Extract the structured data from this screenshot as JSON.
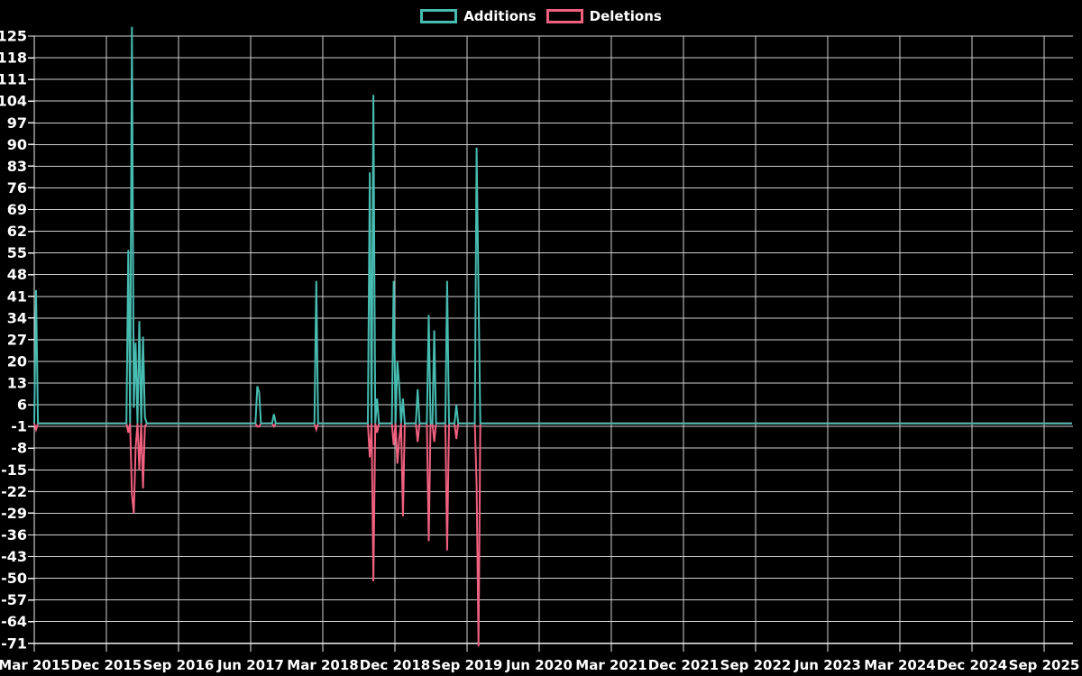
{
  "chart_data": {
    "type": "line",
    "background_color": "#000000",
    "grid_color": "#cfcfcf",
    "axis_color": "#f0f0f0",
    "text_color": "#ffffff",
    "legend": {
      "position": "top-center",
      "items": [
        {
          "label": "Additions",
          "color": "#47bcb1"
        },
        {
          "label": "Deletions",
          "color": "#f0607f"
        }
      ]
    },
    "series": [
      {
        "name": "Additions",
        "color": "#47bcb1"
      },
      {
        "name": "Deletions",
        "color": "#f0607f"
      }
    ],
    "x_axis": {
      "start_date": "2015-03-01",
      "end_date": "2025-12-14",
      "tick_interval_months": 9,
      "tick_labels": [
        "Mar 2015",
        "Dec 2015",
        "Sep 2016",
        "Jun 2017",
        "Mar 2018",
        "Dec 2018",
        "Sep 2019",
        "Jun 2020",
        "Mar 2021",
        "Dec 2021",
        "Sep 2022",
        "Jun 2023",
        "Mar 2024",
        "Dec 2024",
        "Sep 2025"
      ]
    },
    "y_axis": {
      "min": -71,
      "max": 125,
      "tick_step": 7,
      "ticks": [
        125,
        118,
        111,
        104,
        97,
        90,
        83,
        76,
        69,
        62,
        55,
        48,
        41,
        34,
        27,
        20,
        13,
        6,
        -1,
        -8,
        -15,
        -22,
        -29,
        -36,
        -43,
        -50,
        -57,
        -64,
        -71
      ]
    },
    "baseline_value": 0,
    "point_interval": "weekly",
    "weekly_points": [
      {
        "date": "2015-03-08",
        "additions": 43,
        "deletions": -2
      },
      {
        "date": "2016-02-21",
        "additions": 56,
        "deletions": -3
      },
      {
        "date": "2016-03-06",
        "additions": 128,
        "deletions": -23
      },
      {
        "date": "2016-03-13",
        "additions": 5,
        "deletions": -29
      },
      {
        "date": "2016-03-20",
        "additions": 26,
        "deletions": -8
      },
      {
        "date": "2016-04-03",
        "additions": 33,
        "deletions": -15
      },
      {
        "date": "2016-04-17",
        "additions": 28,
        "deletions": -21
      },
      {
        "date": "2016-04-24",
        "additions": 2,
        "deletions": -1
      },
      {
        "date": "2017-06-25",
        "additions": 12,
        "deletions": -1
      },
      {
        "date": "2017-07-02",
        "additions": 10,
        "deletions": -1
      },
      {
        "date": "2017-08-27",
        "additions": 3,
        "deletions": -1
      },
      {
        "date": "2018-02-04",
        "additions": 46,
        "deletions": -2
      },
      {
        "date": "2018-08-26",
        "additions": 81,
        "deletions": -11
      },
      {
        "date": "2018-09-09",
        "additions": 106,
        "deletions": -51
      },
      {
        "date": "2018-09-23",
        "additions": 8,
        "deletions": -3
      },
      {
        "date": "2018-11-25",
        "additions": 46,
        "deletions": -7
      },
      {
        "date": "2018-12-09",
        "additions": 20,
        "deletions": -13
      },
      {
        "date": "2018-12-16",
        "additions": 12,
        "deletions": -5
      },
      {
        "date": "2018-12-30",
        "additions": 8,
        "deletions": -30
      },
      {
        "date": "2019-02-24",
        "additions": 11,
        "deletions": -6
      },
      {
        "date": "2019-04-07",
        "additions": 35,
        "deletions": -38
      },
      {
        "date": "2019-04-28",
        "additions": 30,
        "deletions": -6
      },
      {
        "date": "2019-06-16",
        "additions": 46,
        "deletions": -41
      },
      {
        "date": "2019-07-21",
        "additions": 6,
        "deletions": -5
      },
      {
        "date": "2019-10-06",
        "additions": 89,
        "deletions": -20
      },
      {
        "date": "2019-10-13",
        "additions": 42,
        "deletions": -72
      }
    ]
  }
}
